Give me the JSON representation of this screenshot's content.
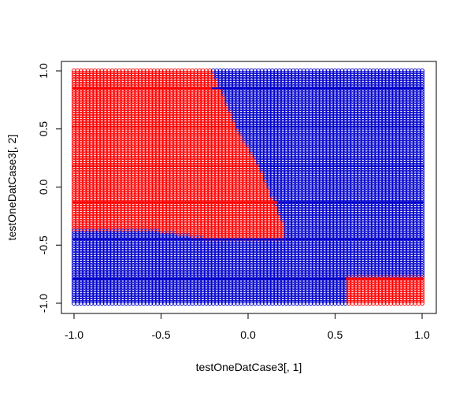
{
  "chart_data": {
    "type": "scatter",
    "xlabel": "testOneDatCase3[, 1]",
    "ylabel": "testOneDatCase3[, 2]",
    "xlim": [
      -1.0,
      1.0
    ],
    "ylim": [
      -1.0,
      1.0
    ],
    "x_ticks": [
      "-1.0",
      "-0.5",
      "0.0",
      "0.5",
      "1.0"
    ],
    "y_ticks": [
      "-1.0",
      "-0.5",
      "0.0",
      "0.5",
      "1.0"
    ],
    "grid": false,
    "marker": "open-circle",
    "grid_step": 0.02,
    "classes": [
      {
        "name": "",
        "color": "#ff0000"
      },
      {
        "name": "",
        "color": "#0000cc"
      }
    ],
    "regions": {
      "red_main": {
        "top_x_boundary": [
          [
            1.0,
            -0.2
          ],
          [
            0.5,
            -0.06
          ],
          [
            0.2,
            0.06
          ],
          [
            -0.3,
            0.2
          ]
        ],
        "bottom_y_boundary": [
          [
            -1.0,
            -0.36
          ],
          [
            -0.5,
            -0.38
          ],
          [
            -0.25,
            -0.44
          ],
          [
            0.0,
            -0.45
          ],
          [
            0.2,
            -0.44
          ]
        ]
      },
      "red_bottom_right": {
        "x": [
          0.57,
          1.0
        ],
        "y": [
          -1.0,
          -0.77
        ]
      }
    },
    "dense_rows": [
      {
        "y": 0.85,
        "color": "#ff0000",
        "x_to": -0.2
      },
      {
        "y": 0.85,
        "color": "#0000cc",
        "x_from": -0.2
      },
      {
        "y": 0.52,
        "color": "#ff0000",
        "x_to": -0.06
      },
      {
        "y": 0.52,
        "color": "#0000cc",
        "x_from": -0.06
      },
      {
        "y": 0.18,
        "color": "#ff0000",
        "x_to": 0.07
      },
      {
        "y": 0.18,
        "color": "#0000cc",
        "x_from": 0.07
      },
      {
        "y": -0.13,
        "color": "#ff0000",
        "x_to": 0.18
      },
      {
        "y": -0.13,
        "color": "#0000cc",
        "x_from": 0.18
      },
      {
        "y": -0.45,
        "color": "#0000cc",
        "x_from": -1.0
      },
      {
        "y": -0.79,
        "color": "#0000cc",
        "x_to": 0.57
      },
      {
        "y": -0.79,
        "color": "#ff0000",
        "x_from": 0.57
      }
    ]
  }
}
